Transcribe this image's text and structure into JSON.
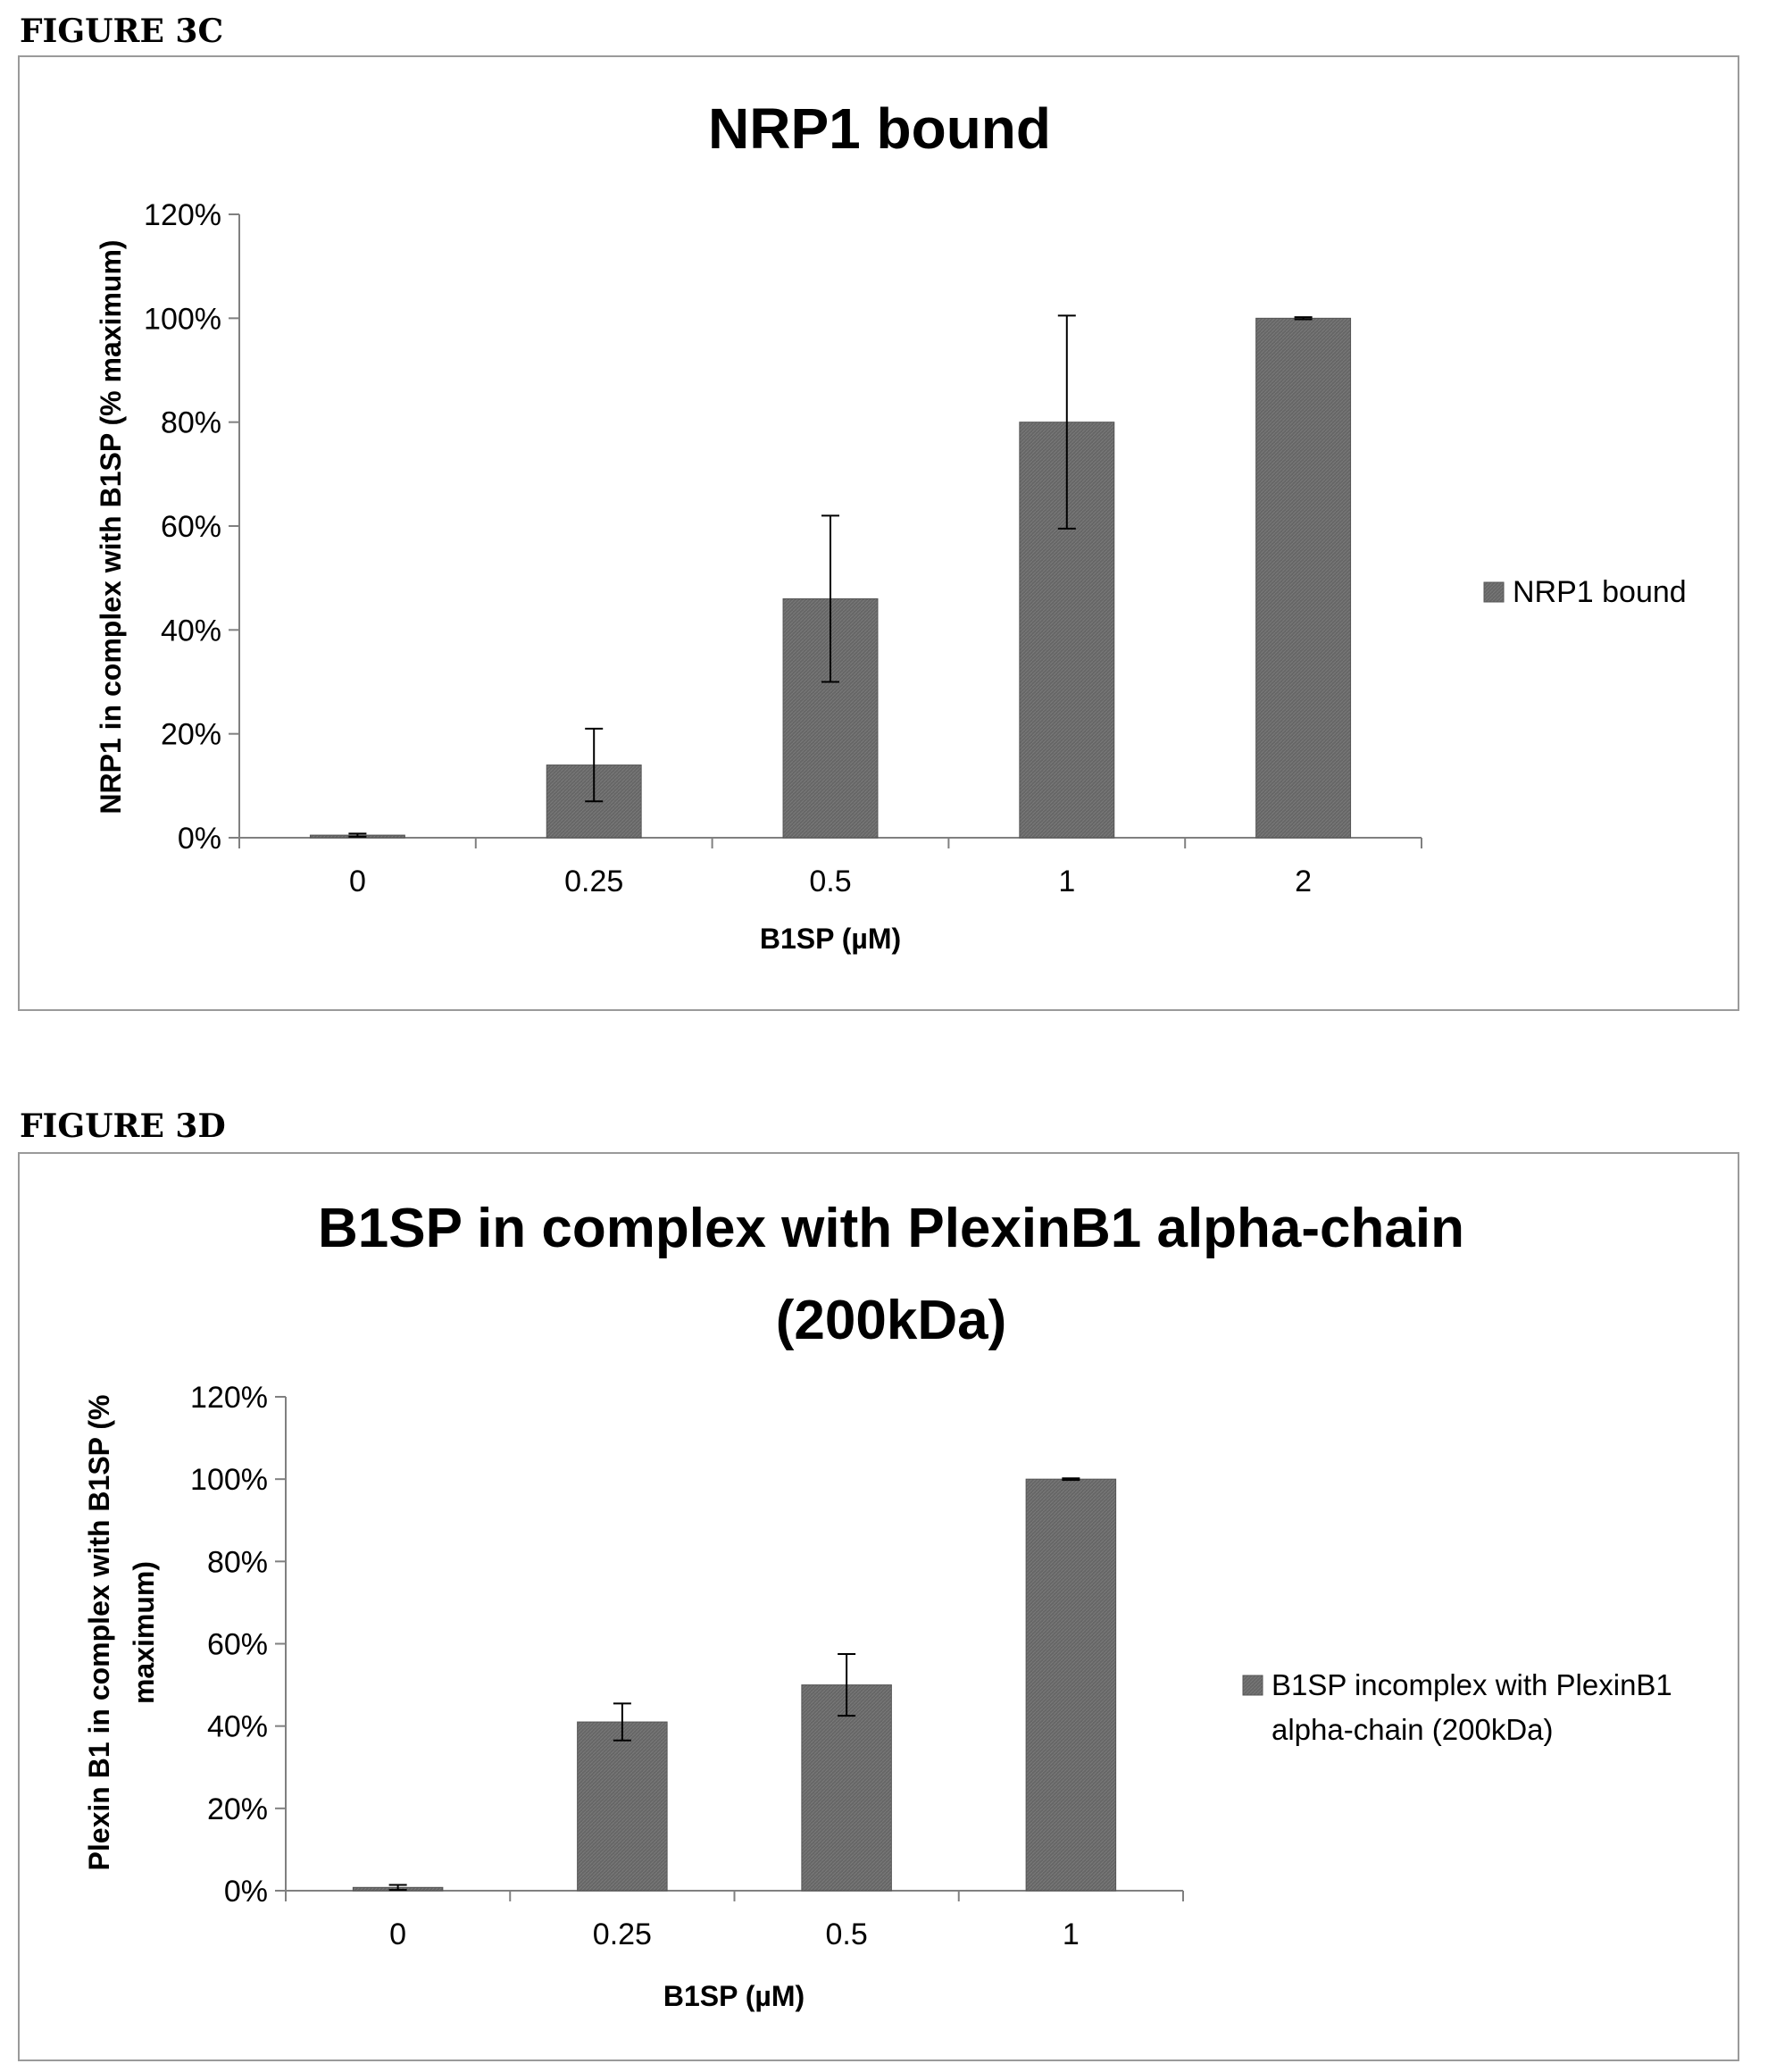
{
  "figure_c": {
    "label": "FIGURE 3C"
  },
  "figure_d": {
    "label": "FIGURE 3D"
  },
  "chart_data": [
    {
      "type": "bar",
      "title": "NRP1 bound",
      "xlabel": "B1SP (µM)",
      "ylabel": "NRP1 in complex with B1SP (% maximum)",
      "categories": [
        "0",
        "0.25",
        "0.5",
        "1",
        "2"
      ],
      "series": [
        {
          "name": "NRP1 bound",
          "values": [
            0.5,
            14,
            46,
            80,
            100
          ],
          "errors": [
            0.3,
            7,
            16,
            20.5,
            0.2
          ]
        }
      ],
      "yticks": [
        "0%",
        "20%",
        "40%",
        "60%",
        "80%",
        "100%",
        "120%"
      ],
      "ylim": [
        0,
        120
      ],
      "legend": "right",
      "grid": false,
      "bar_color": "#666666"
    },
    {
      "type": "bar",
      "title": [
        "B1SP in complex with PlexinB1 alpha-chain",
        "(200kDa)"
      ],
      "xlabel": "B1SP (µM)",
      "ylabel": [
        "Plexin B1 in complex with B1SP (%",
        "maximum)"
      ],
      "categories": [
        "0",
        "0.25",
        "0.5",
        "1"
      ],
      "series": [
        {
          "name": [
            "B1SP incomplex with PlexinB1",
            "alpha-chain (200kDa)"
          ],
          "values": [
            0.8,
            41,
            50,
            100
          ],
          "errors": [
            0.6,
            4.5,
            7.5,
            0.2
          ]
        }
      ],
      "yticks": [
        "0%",
        "20%",
        "40%",
        "60%",
        "80%",
        "100%",
        "120%"
      ],
      "ylim": [
        0,
        120
      ],
      "legend": "right",
      "grid": false,
      "bar_color": "#666666"
    }
  ]
}
